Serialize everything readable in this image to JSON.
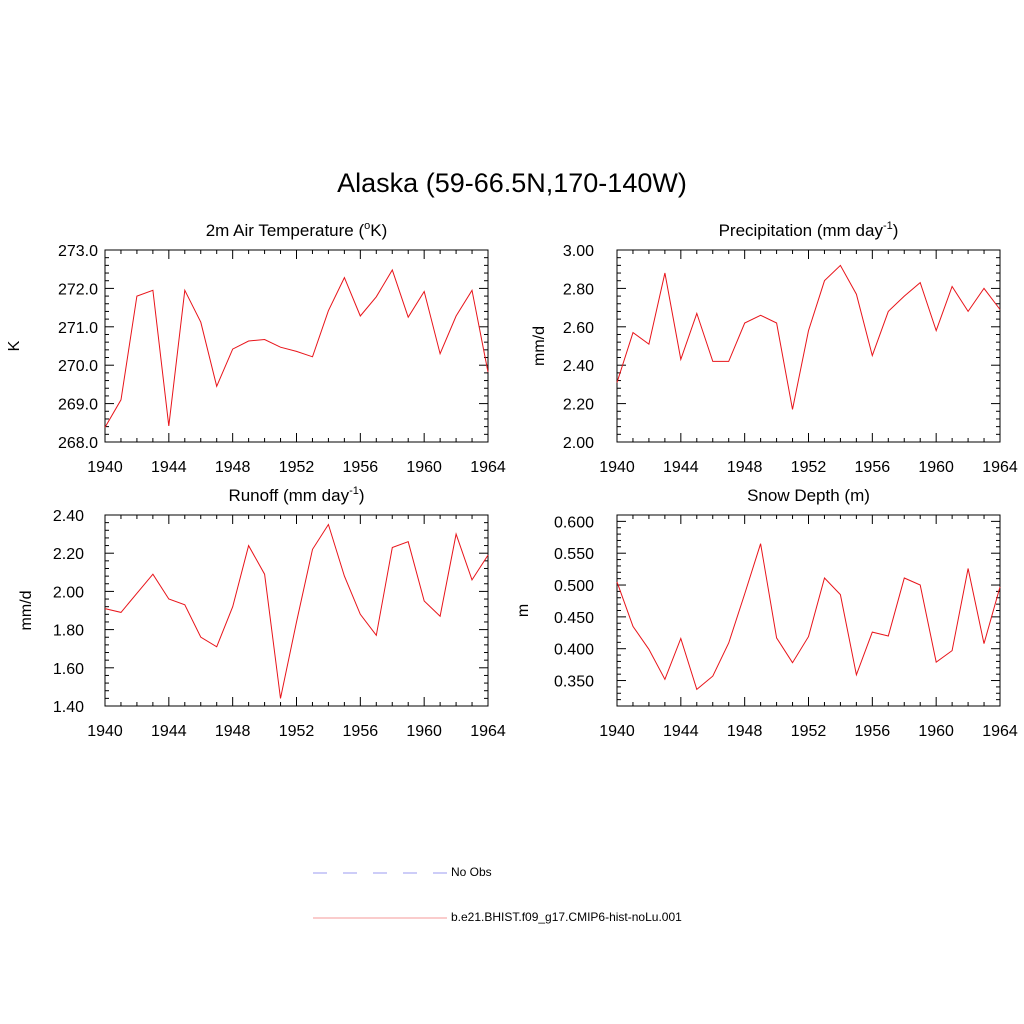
{
  "title": "Alaska (59-66.5N,170-140W)",
  "colors": {
    "model_line": "#e8141a",
    "obs_line": "#9b9bf2",
    "legend_model_line": "#f59a9a",
    "axis": "#000000"
  },
  "legend": {
    "obs_label": "No Obs",
    "model_label": "b.e21.BHIST.f09_g17.CMIP6-hist-noLu.001"
  },
  "chart_data": [
    {
      "type": "line",
      "title_parts": [
        "2m Air Temperature (",
        "o",
        "K)"
      ],
      "title_style": "sup",
      "ylabel": "K",
      "xlim": [
        1940,
        1964
      ],
      "ylim": [
        268.0,
        273.0
      ],
      "xticks": [
        "1940",
        "1944",
        "1948",
        "1952",
        "1956",
        "1960",
        "1964"
      ],
      "yticks": [
        "268.0",
        "269.0",
        "270.0",
        "271.0",
        "272.0",
        "273.0"
      ],
      "x": [
        1940,
        1941,
        1942,
        1943,
        1944,
        1945,
        1946,
        1947,
        1948,
        1949,
        1950,
        1951,
        1952,
        1953,
        1954,
        1955,
        1956,
        1957,
        1958,
        1959,
        1960,
        1961,
        1962,
        1963,
        1964
      ],
      "series": [
        {
          "values": [
            268.38,
            269.1,
            271.8,
            271.95,
            268.42,
            271.95,
            271.12,
            269.45,
            270.42,
            270.63,
            270.67,
            270.47,
            270.36,
            270.22,
            271.42,
            272.28,
            271.28,
            271.78,
            272.48,
            271.25,
            271.92,
            270.3,
            271.28,
            271.95,
            269.82
          ]
        }
      ]
    },
    {
      "type": "line",
      "title_parts": [
        "Precipitation (mm day",
        "-1",
        ")"
      ],
      "title_style": "sup",
      "ylabel": "mm/d",
      "xlim": [
        1940,
        1964
      ],
      "ylim": [
        2.0,
        3.0
      ],
      "xticks": [
        "1940",
        "1944",
        "1948",
        "1952",
        "1956",
        "1960",
        "1964"
      ],
      "yticks": [
        "2.00",
        "2.20",
        "2.40",
        "2.60",
        "2.80",
        "3.00"
      ],
      "x": [
        1940,
        1941,
        1942,
        1943,
        1944,
        1945,
        1946,
        1947,
        1948,
        1949,
        1950,
        1951,
        1952,
        1953,
        1954,
        1955,
        1956,
        1957,
        1958,
        1959,
        1960,
        1961,
        1962,
        1963,
        1964
      ],
      "series": [
        {
          "values": [
            2.31,
            2.57,
            2.51,
            2.88,
            2.43,
            2.67,
            2.42,
            2.42,
            2.62,
            2.66,
            2.62,
            2.17,
            2.58,
            2.84,
            2.92,
            2.77,
            2.45,
            2.68,
            2.76,
            2.83,
            2.58,
            2.81,
            2.68,
            2.8,
            2.69
          ]
        }
      ]
    },
    {
      "type": "line",
      "title_parts": [
        "Runoff (mm day",
        "-1",
        ")"
      ],
      "title_style": "sup",
      "ylabel": "mm/d",
      "xlim": [
        1940,
        1964
      ],
      "ylim": [
        1.4,
        2.4
      ],
      "xticks": [
        "1940",
        "1944",
        "1948",
        "1952",
        "1956",
        "1960",
        "1964"
      ],
      "yticks": [
        "1.40",
        "1.60",
        "1.80",
        "2.00",
        "2.20",
        "2.40"
      ],
      "x": [
        1940,
        1941,
        1942,
        1943,
        1944,
        1945,
        1946,
        1947,
        1948,
        1949,
        1950,
        1951,
        1952,
        1953,
        1954,
        1955,
        1956,
        1957,
        1958,
        1959,
        1960,
        1961,
        1962,
        1963,
        1964
      ],
      "series": [
        {
          "values": [
            1.91,
            1.89,
            1.99,
            2.09,
            1.96,
            1.93,
            1.76,
            1.71,
            1.92,
            2.24,
            2.09,
            1.44,
            1.84,
            2.22,
            2.35,
            2.08,
            1.88,
            1.77,
            2.23,
            2.26,
            1.95,
            1.87,
            2.3,
            2.06,
            2.19
          ]
        }
      ]
    },
    {
      "type": "line",
      "title_parts": [
        "Snow Depth (m)"
      ],
      "title_style": "plain",
      "ylabel": "m",
      "xlim": [
        1940,
        1964
      ],
      "ylim": [
        0.31,
        0.61
      ],
      "xticks": [
        "1940",
        "1944",
        "1948",
        "1952",
        "1956",
        "1960",
        "1964"
      ],
      "yticks": [
        "0.350",
        "0.400",
        "0.450",
        "0.500",
        "0.550",
        "0.600"
      ],
      "x": [
        1940,
        1941,
        1942,
        1943,
        1944,
        1945,
        1946,
        1947,
        1948,
        1949,
        1950,
        1951,
        1952,
        1953,
        1954,
        1955,
        1956,
        1957,
        1958,
        1959,
        1960,
        1961,
        1962,
        1963,
        1964
      ],
      "series": [
        {
          "values": [
            0.505,
            0.435,
            0.399,
            0.352,
            0.416,
            0.336,
            0.357,
            0.409,
            0.486,
            0.565,
            0.417,
            0.378,
            0.419,
            0.511,
            0.485,
            0.359,
            0.426,
            0.42,
            0.511,
            0.5,
            0.379,
            0.397,
            0.526,
            0.408,
            0.497
          ]
        }
      ]
    }
  ]
}
